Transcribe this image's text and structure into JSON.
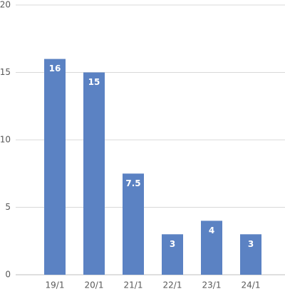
{
  "chart_data": {
    "type": "bar",
    "categories": [
      "19/1",
      "20/1",
      "21/1",
      "22/1",
      "23/1",
      "24/1"
    ],
    "values": [
      16,
      15,
      7.5,
      3,
      4,
      3
    ],
    "color": "#5b82c3",
    "ylim": [
      0,
      20
    ],
    "yticks": [
      0,
      5,
      10,
      15,
      20
    ],
    "grid": true
  }
}
